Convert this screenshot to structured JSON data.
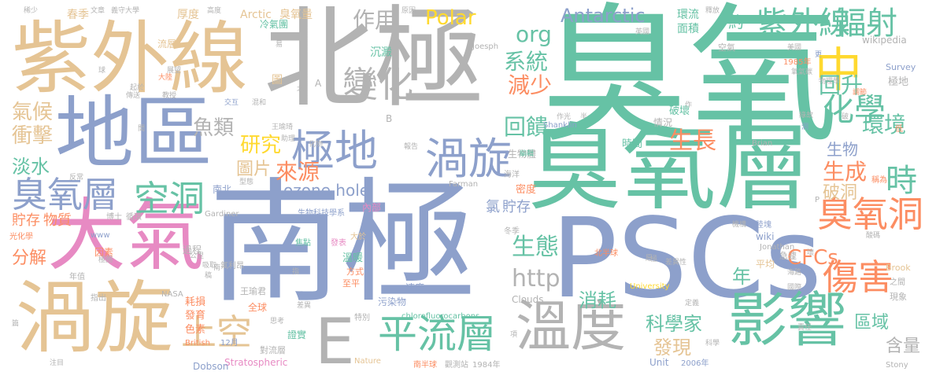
{
  "words": [
    {
      "text": "臭氧",
      "color": "#66c2a5"
    },
    {
      "text": "北極",
      "color": "#b3b3b3"
    },
    {
      "text": "南極",
      "color": "#8da0cb"
    },
    {
      "text": "臭氧層",
      "color": "#66c2a5"
    },
    {
      "text": "紫外線",
      "color": "#e5c494"
    },
    {
      "text": "PSCs",
      "color": "#8da0cb"
    },
    {
      "text": "地區",
      "color": "#8da0cb"
    },
    {
      "text": "大氣",
      "color": "#e78ac3"
    },
    {
      "text": "渦旋",
      "color": "#e5c494"
    },
    {
      "text": "溫度",
      "color": "#b3b3b3"
    },
    {
      "text": "影響",
      "color": "#66c2a5"
    },
    {
      "text": "中",
      "color": "#ffd92f"
    },
    {
      "text": "極地",
      "color": "#8da0cb"
    },
    {
      "text": "渦旋",
      "color": "#8da0cb"
    },
    {
      "text": "平流層",
      "color": "#66c2a5"
    },
    {
      "text": "E",
      "color": "#b3b3b3"
    },
    {
      "text": "上空",
      "color": "#e5c494"
    },
    {
      "text": "紫外線",
      "color": "#66c2a5"
    },
    {
      "text": "輻射",
      "color": "#66c2a5"
    },
    {
      "text": "化學",
      "color": "#66c2a5"
    },
    {
      "text": "臭氧層",
      "color": "#8da0cb"
    },
    {
      "text": "空洞",
      "color": "#66c2a5"
    },
    {
      "text": "時",
      "color": "#66c2a5"
    },
    {
      "text": "臭氧洞",
      "color": "#fc8d62"
    },
    {
      "text": "傷害",
      "color": "#fc8d62"
    },
    {
      "text": "變化",
      "color": "#b3b3b3"
    },
    {
      "text": "作用",
      "color": "#b3b3b3"
    },
    {
      "text": "Antarctic",
      "color": "#8da0cb"
    },
    {
      "text": "org",
      "color": "#66c2a5"
    },
    {
      "text": "Polar",
      "color": "#ffd92f"
    },
    {
      "text": "系統",
      "color": "#66c2a5"
    },
    {
      "text": "減少",
      "color": "#fc8d62"
    },
    {
      "text": "回饋",
      "color": "#66c2a5"
    },
    {
      "text": "研究",
      "color": "#ffd92f"
    },
    {
      "text": "魚類",
      "color": "#b3b3b3"
    },
    {
      "text": "圖片",
      "color": "#e5c494"
    },
    {
      "text": "來源",
      "color": "#fc8d62"
    },
    {
      "text": "生長",
      "color": "#fc8d62"
    },
    {
      "text": "回升",
      "color": "#66c2a5"
    },
    {
      "text": "環境",
      "color": "#66c2a5"
    },
    {
      "text": "生成",
      "color": "#fc8d62"
    },
    {
      "text": "破洞",
      "color": "#e5c494"
    },
    {
      "text": "ozone hole",
      "color": "#8da0cb"
    },
    {
      "text": "氣候",
      "color": "#e5c494"
    },
    {
      "text": "衝擊",
      "color": "#e5c494"
    },
    {
      "text": "淡水",
      "color": "#66c2a5"
    },
    {
      "text": "貯存",
      "color": "#fc8d62"
    },
    {
      "text": "物質",
      "color": "#fc8d62"
    },
    {
      "text": "分解",
      "color": "#fc8d62"
    },
    {
      "text": "生態",
      "color": "#66c2a5"
    },
    {
      "text": "http",
      "color": "#b3b3b3"
    },
    {
      "text": "年",
      "color": "#66c2a5"
    },
    {
      "text": "消耗",
      "color": "#66c2a5"
    },
    {
      "text": "CFCs",
      "color": "#fc8d62"
    },
    {
      "text": "科學家",
      "color": "#66c2a5"
    },
    {
      "text": "發現",
      "color": "#e5c494"
    },
    {
      "text": "區域",
      "color": "#66c2a5"
    },
    {
      "text": "含量",
      "color": "#b3b3b3"
    },
    {
      "text": "氯",
      "color": "#8da0cb"
    },
    {
      "text": "貯存",
      "color": "#8da0cb"
    },
    {
      "text": "生物",
      "color": "#8da0cb"
    },
    {
      "text": "約",
      "color": "#66c2a5"
    },
    {
      "text": "春季",
      "color": "#e5c494"
    },
    {
      "text": "厚度",
      "color": "#e5c494"
    },
    {
      "text": "Arctic",
      "color": "#e5c494"
    },
    {
      "text": "臭氧量",
      "color": "#e5c494"
    },
    {
      "text": "環流",
      "color": "#66c2a5"
    },
    {
      "text": "面積",
      "color": "#66c2a5"
    },
    {
      "text": "wikipedia",
      "color": "#b3b3b3"
    },
    {
      "text": "極地",
      "color": "#b3b3b3"
    },
    {
      "text": "Survey",
      "color": "#8da0cb"
    },
    {
      "text": "破壞",
      "color": "#66c2a5"
    },
    {
      "text": "生物體",
      "color": "#b3b3b3"
    },
    {
      "text": "沉澱",
      "color": "#66c2a5"
    },
    {
      "text": "冷氣團",
      "color": "#66c2a5"
    },
    {
      "text": "圖",
      "color": "#e5c494"
    },
    {
      "text": "流層",
      "color": "#e5c494"
    },
    {
      "text": "Shanklin",
      "color": "#8da0cb"
    },
    {
      "text": "Farman",
      "color": "#b3b3b3"
    },
    {
      "text": "Gardiner",
      "color": "#b3b3b3"
    },
    {
      "text": "Jonathan",
      "color": "#b3b3b3"
    },
    {
      "text": "Brook",
      "color": "#e5c494"
    },
    {
      "text": "chlorofluorocarbons",
      "color": "#66c2a5"
    },
    {
      "text": "Stratospheric",
      "color": "#e78ac3"
    },
    {
      "text": "Dobson",
      "color": "#8da0cb"
    },
    {
      "text": "Nature",
      "color": "#e5c494"
    },
    {
      "text": "Unit",
      "color": "#8da0cb"
    },
    {
      "text": "Clouds",
      "color": "#b3b3b3"
    },
    {
      "text": "University",
      "color": "#ffd92f"
    },
    {
      "text": "2006年",
      "color": "#8da0cb"
    },
    {
      "text": "1984年",
      "color": "#b3b3b3"
    },
    {
      "text": "1985年",
      "color": "#fc8d62"
    },
    {
      "text": "Stony",
      "color": "#b3b3b3"
    },
    {
      "text": "Brian",
      "color": "#b3b3b3"
    },
    {
      "text": "Joesph",
      "color": "#b3b3b3"
    },
    {
      "text": "www",
      "color": "#8da0cb"
    },
    {
      "text": "NASA",
      "color": "#b3b3b3"
    },
    {
      "text": "British",
      "color": "#fc8d62"
    },
    {
      "text": "12月",
      "color": "#8da0cb"
    },
    {
      "text": "wiki",
      "color": "#8da0cb"
    },
    {
      "text": "P",
      "color": "#b3b3b3"
    },
    {
      "text": "A",
      "color": "#b3b3b3"
    },
    {
      "text": "B",
      "color": "#b3b3b3"
    },
    {
      "text": "溫暖",
      "color": "#66c2a5"
    },
    {
      "text": "方式",
      "color": "#fc8d62"
    },
    {
      "text": "至平",
      "color": "#fc8d62"
    },
    {
      "text": "速度",
      "color": "#8da0cb"
    },
    {
      "text": "污染物",
      "color": "#8da0cb"
    },
    {
      "text": "全球",
      "color": "#fc8d62"
    },
    {
      "text": "王瑜君",
      "color": "#b3b3b3"
    },
    {
      "text": "氟利昂",
      "color": "#b3b3b3"
    },
    {
      "text": "耗損",
      "color": "#fc8d62"
    },
    {
      "text": "發育",
      "color": "#fc8d62"
    },
    {
      "text": "色素",
      "color": "#fc8d62"
    },
    {
      "text": "證實",
      "color": "#66c2a5"
    },
    {
      "text": "對流層",
      "color": "#b3b3b3"
    },
    {
      "text": "特別",
      "color": "#b3b3b3"
    },
    {
      "text": "過程",
      "color": "#b3b3b3"
    },
    {
      "text": "因素",
      "color": "#fc8d62"
    },
    {
      "text": "年值",
      "color": "#b3b3b3"
    },
    {
      "text": "指出",
      "color": "#b3b3b3"
    },
    {
      "text": "內部",
      "color": "#e78ac3"
    },
    {
      "text": "南北",
      "color": "#8da0cb"
    },
    {
      "text": "光化學",
      "color": "#fc8d62"
    },
    {
      "text": "博士",
      "color": "#b3b3b3"
    },
    {
      "text": "循環",
      "color": "#b3b3b3"
    },
    {
      "text": "生物科技學系",
      "color": "#8da0cb"
    },
    {
      "text": "冬季",
      "color": "#b3b3b3"
    },
    {
      "text": "大於",
      "color": "#e5c494"
    },
    {
      "text": "發表",
      "color": "#e78ac3"
    },
    {
      "text": "焦點",
      "color": "#66c2a5"
    },
    {
      "text": "密度",
      "color": "#fc8d62"
    },
    {
      "text": "時間",
      "color": "#66c2a5"
    },
    {
      "text": "情況",
      "color": "#b3b3b3"
    },
    {
      "text": "平均",
      "color": "#e5c494"
    },
    {
      "text": "北半球",
      "color": "#fc8d62"
    },
    {
      "text": "南半球",
      "color": "#fc8d62"
    },
    {
      "text": "觀測站",
      "color": "#b3b3b3"
    },
    {
      "text": "海洋",
      "color": "#b3b3b3"
    },
    {
      "text": "編輯",
      "color": "#66c2a5"
    },
    {
      "text": "機構",
      "color": "#b3b3b3"
    },
    {
      "text": "陸塊",
      "color": "#8da0cb"
    },
    {
      "text": "急遽",
      "color": "#b3b3b3"
    },
    {
      "text": "海路",
      "color": "#b3b3b3"
    },
    {
      "text": "國際",
      "color": "#b3b3b3"
    },
    {
      "text": "差異性",
      "color": "#b3b3b3"
    },
    {
      "text": "之間",
      "color": "#b3b3b3"
    },
    {
      "text": "現象",
      "color": "#b3b3b3"
    },
    {
      "text": "定義",
      "color": "#b3b3b3"
    },
    {
      "text": "責任",
      "color": "#b3b3b3"
    },
    {
      "text": "科學",
      "color": "#b3b3b3"
    },
    {
      "text": "稱為",
      "color": "#fc8d62"
    },
    {
      "text": "低",
      "color": "#fc8d62"
    },
    {
      "text": "破",
      "color": "#b3b3b3"
    },
    {
      "text": "洞",
      "color": "#8da0cb"
    },
    {
      "text": "調節",
      "color": "#fc8d62"
    },
    {
      "text": "物理學",
      "color": "#b3b3b3"
    },
    {
      "text": "氧氣碳",
      "color": "#b3b3b3"
    },
    {
      "text": "美國",
      "color": "#b3b3b3"
    },
    {
      "text": "空氣",
      "color": "#b3b3b3"
    },
    {
      "text": "英國",
      "color": "#b3b3b3"
    },
    {
      "text": "更",
      "color": "#8da0cb"
    },
    {
      "text": "釋放",
      "color": "#b3b3b3"
    },
    {
      "text": "稀少",
      "color": "#b3b3b3"
    },
    {
      "text": "文章",
      "color": "#b3b3b3"
    },
    {
      "text": "義守大學",
      "color": "#b3b3b3"
    },
    {
      "text": "高度",
      "color": "#b3b3b3"
    },
    {
      "text": "原因",
      "color": "#b3b3b3"
    },
    {
      "text": "易",
      "color": "#b3b3b3"
    },
    {
      "text": "傳送",
      "color": "#b3b3b3"
    },
    {
      "text": "展望",
      "color": "#b3b3b3"
    },
    {
      "text": "大陸",
      "color": "#fc8d62"
    },
    {
      "text": "教授",
      "color": "#b3b3b3"
    },
    {
      "text": "起於",
      "color": "#b3b3b3"
    },
    {
      "text": "交互",
      "color": "#8da0cb"
    },
    {
      "text": "混和",
      "color": "#b3b3b3"
    },
    {
      "text": "王瑜琦",
      "color": "#b3b3b3"
    },
    {
      "text": "助理",
      "color": "#b3b3b3"
    },
    {
      "text": "化物",
      "color": "#b3b3b3"
    },
    {
      "text": "報告",
      "color": "#b3b3b3"
    },
    {
      "text": "作光",
      "color": "#b3b3b3"
    },
    {
      "text": "半",
      "color": "#b3b3b3"
    },
    {
      "text": "球",
      "color": "#b3b3b3"
    },
    {
      "text": "間",
      "color": "#b3b3b3"
    },
    {
      "text": "反常",
      "color": "#b3b3b3"
    },
    {
      "text": "北",
      "color": "#b3b3b3"
    },
    {
      "text": "南",
      "color": "#b3b3b3"
    },
    {
      "text": "型態",
      "color": "#b3b3b3"
    },
    {
      "text": "公里",
      "color": "#b3b3b3"
    },
    {
      "text": "極圈",
      "color": "#b3b3b3"
    },
    {
      "text": "吸取",
      "color": "#b3b3b3"
    },
    {
      "text": "稿",
      "color": "#b3b3b3"
    },
    {
      "text": "注目",
      "color": "#b3b3b3"
    },
    {
      "text": "思考",
      "color": "#b3b3b3"
    },
    {
      "text": "差異",
      "color": "#b3b3b3"
    },
    {
      "text": "篇",
      "color": "#b3b3b3"
    },
    {
      "text": "指",
      "color": "#b3b3b3"
    },
    {
      "text": "極",
      "color": "#b3b3b3"
    },
    {
      "text": "項",
      "color": "#b3b3b3"
    },
    {
      "text": "愿",
      "color": "#b3b3b3"
    },
    {
      "text": "壞",
      "color": "#b3b3b3"
    },
    {
      "text": "綠故",
      "color": "#b3b3b3"
    },
    {
      "text": "酸碼",
      "color": "#b3b3b3"
    },
    {
      "text": "作",
      "color": "#b3b3b3"
    }
  ]
}
